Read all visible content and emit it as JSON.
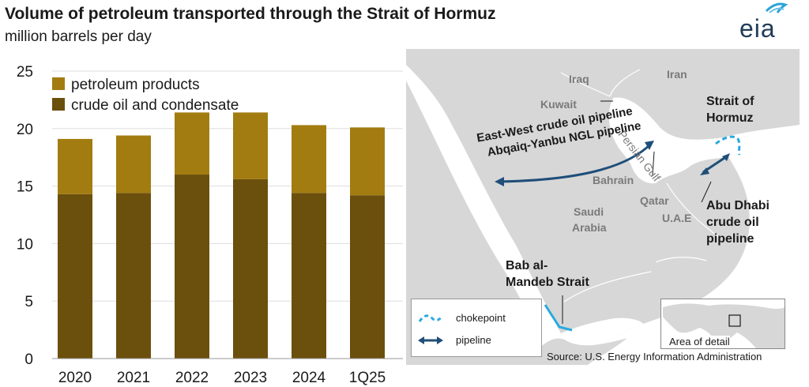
{
  "header": {
    "title": "Volume of petroleum transported through the Strait of Hormuz",
    "subtitle": "million barrels per day",
    "logo_text": "eia"
  },
  "colors": {
    "crude": "#6b4f0c",
    "products": "#a27c10",
    "pipeline": "#1f4e79",
    "chokepoint": "#29a9e0",
    "land": "#d7d7d7",
    "water": "#ffffff"
  },
  "chart_data": {
    "type": "bar",
    "stacked": true,
    "categories": [
      "2020",
      "2021",
      "2022",
      "2023",
      "2024",
      "1Q25"
    ],
    "series": [
      {
        "name": "crude oil and condensate",
        "values": [
          14.3,
          14.4,
          16.0,
          15.6,
          14.4,
          14.2
        ]
      },
      {
        "name": "petroleum products",
        "values": [
          4.8,
          5.0,
          5.4,
          5.8,
          5.9,
          5.9
        ]
      }
    ],
    "ylim": [
      0,
      25
    ],
    "yticks": [
      0,
      5,
      10,
      15,
      20,
      25
    ],
    "legend": [
      "petroleum products",
      "crude oil and condensate"
    ],
    "legend_position": "top-left",
    "grid": "horizontal"
  },
  "map": {
    "countries": {
      "iraq": "Iraq",
      "iran": "Iran",
      "kuwait": "Kuwait",
      "bahrain": "Bahrain",
      "qatar": "Qatar",
      "uae": "U.A.E",
      "saudi1": "Saudi",
      "saudi2": "Arabia"
    },
    "gulf_label": "Persian Gulf",
    "strait_hormuz": [
      "Strait of",
      "Hormuz"
    ],
    "pipelines": [
      "East-West crude oil pipeline",
      "Abqaiq-Yanbu NGL pipeline"
    ],
    "abu_dhabi": [
      "Abu Dhabi",
      "crude oil",
      "pipeline"
    ],
    "bab": [
      "Bab al-",
      "Mandeb Strait"
    ],
    "legend": {
      "chokepoint": "chokepoint",
      "pipeline": "pipeline"
    },
    "inset_label": "Area of detail"
  },
  "source": "Source: U.S. Energy Information Administration"
}
